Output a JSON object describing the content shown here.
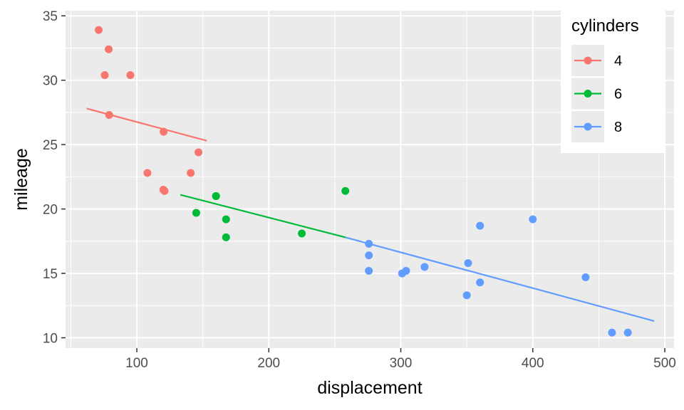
{
  "chart_data": {
    "type": "scatter",
    "xlabel": "displacement",
    "ylabel": "mileage",
    "xlim": [
      46,
      507
    ],
    "ylim": [
      9.2,
      35.4
    ],
    "x_ticks": [
      100,
      200,
      300,
      400,
      500
    ],
    "y_ticks": [
      10,
      15,
      20,
      25,
      30,
      35
    ],
    "x_tick_labels": [
      "100",
      "200",
      "300",
      "400",
      "500"
    ],
    "y_tick_labels": [
      "10",
      "15",
      "20",
      "25",
      "30",
      "35"
    ],
    "grid": true,
    "legend": {
      "title": "cylinders",
      "position": "top-right"
    },
    "series": [
      {
        "name": "4",
        "color": "#F8766D",
        "points": [
          [
            71.1,
            33.9
          ],
          [
            75.7,
            30.4
          ],
          [
            78.7,
            32.4
          ],
          [
            79.0,
            27.3
          ],
          [
            95.1,
            30.4
          ],
          [
            108.0,
            22.8
          ],
          [
            120.1,
            21.5
          ],
          [
            120.3,
            26.0
          ],
          [
            121.0,
            21.4
          ],
          [
            140.8,
            22.8
          ],
          [
            146.7,
            24.4
          ]
        ],
        "fit": [
          [
            62,
            27.8
          ],
          [
            153,
            25.3
          ]
        ]
      },
      {
        "name": "6",
        "color": "#00BA38",
        "points": [
          [
            145.0,
            19.7
          ],
          [
            160.0,
            21.0
          ],
          [
            160.0,
            21.0
          ],
          [
            167.6,
            19.2
          ],
          [
            167.6,
            17.8
          ],
          [
            225.0,
            18.1
          ],
          [
            258.0,
            21.4
          ]
        ],
        "fit": [
          [
            133,
            21.1
          ],
          [
            258,
            17.8
          ]
        ]
      },
      {
        "name": "8",
        "color": "#619CFF",
        "points": [
          [
            275.8,
            16.4
          ],
          [
            275.8,
            17.3
          ],
          [
            275.8,
            15.2
          ],
          [
            301.0,
            15.0
          ],
          [
            304.0,
            15.2
          ],
          [
            318.0,
            15.5
          ],
          [
            350.0,
            13.3
          ],
          [
            351.0,
            15.8
          ],
          [
            360.0,
            18.7
          ],
          [
            360.0,
            14.3
          ],
          [
            400.0,
            19.2
          ],
          [
            440.0,
            14.7
          ],
          [
            460.0,
            10.4
          ],
          [
            472.0,
            10.4
          ]
        ],
        "fit": [
          [
            258,
            17.8
          ],
          [
            492,
            11.3
          ]
        ]
      }
    ]
  }
}
